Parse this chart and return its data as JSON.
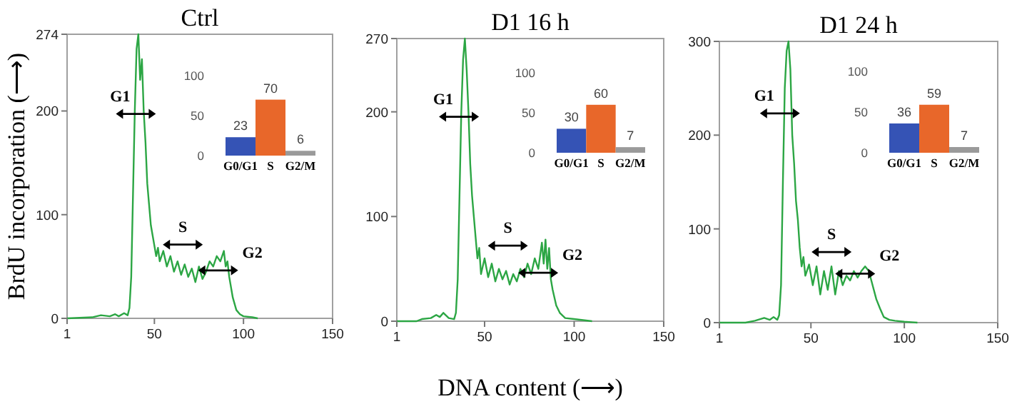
{
  "chart_data": [
    {
      "type": "line",
      "title": "Ctrl",
      "ylabel": "BrdU incorporation (⟶)",
      "xlim": [
        1,
        150
      ],
      "xticks": [
        1,
        50,
        100,
        150
      ],
      "ylim": [
        0,
        274
      ],
      "yticks": [
        0,
        100,
        200,
        274
      ],
      "grid": false,
      "annotations": [
        "G1",
        "S",
        "G2"
      ],
      "series": [
        {
          "color": "#2ca644",
          "x": [
            1,
            15,
            20,
            25,
            28,
            30,
            33,
            35,
            36,
            37,
            38,
            39,
            40,
            41,
            42,
            43,
            44,
            45,
            46,
            47,
            48,
            49,
            50,
            51,
            52,
            53,
            55,
            57,
            59,
            61,
            63,
            65,
            67,
            69,
            71,
            73,
            75,
            77,
            79,
            81,
            83,
            85,
            87,
            89,
            90,
            91,
            92,
            94,
            96,
            98,
            100,
            105,
            108
          ],
          "values": [
            0,
            1,
            3,
            2,
            4,
            2,
            5,
            3,
            10,
            40,
            120,
            200,
            260,
            274,
            230,
            250,
            200,
            170,
            130,
            110,
            90,
            80,
            70,
            60,
            68,
            55,
            65,
            50,
            60,
            45,
            55,
            42,
            52,
            40,
            48,
            35,
            50,
            38,
            45,
            55,
            50,
            60,
            55,
            65,
            50,
            55,
            40,
            20,
            8,
            4,
            2,
            1,
            0
          ]
        }
      ]
    },
    {
      "type": "bar",
      "categories": [
        "G0/G1",
        "S",
        "G2/M"
      ],
      "values": [
        23,
        70,
        6
      ],
      "colors": [
        "#3553b5",
        "#e8672a",
        "#9a9a9a"
      ],
      "ylim": [
        0,
        100
      ],
      "yticks": [
        0,
        50,
        100
      ],
      "data_labels": true
    },
    {
      "type": "line",
      "title": "D1 16 h",
      "xlabel": "DNA content (⟶)",
      "xlim": [
        1,
        150
      ],
      "xticks": [
        1,
        50,
        100,
        150
      ],
      "ylim": [
        0,
        270
      ],
      "yticks": [
        0,
        100,
        200,
        270
      ],
      "grid": false,
      "annotations": [
        "G1",
        "S",
        "G2"
      ],
      "series": [
        {
          "color": "#2ca644",
          "x": [
            1,
            12,
            15,
            20,
            23,
            25,
            27,
            30,
            33,
            34,
            35,
            36,
            37,
            38,
            39,
            40,
            41,
            42,
            43,
            44,
            45,
            46,
            47,
            48,
            50,
            52,
            54,
            56,
            58,
            60,
            62,
            64,
            66,
            68,
            70,
            72,
            74,
            76,
            78,
            80,
            82,
            83,
            84,
            85,
            86,
            87,
            88,
            90,
            92,
            95,
            100,
            105,
            110
          ],
          "values": [
            0,
            0,
            2,
            3,
            6,
            4,
            8,
            3,
            2,
            8,
            40,
            120,
            200,
            250,
            270,
            240,
            200,
            150,
            120,
            100,
            80,
            60,
            70,
            45,
            60,
            42,
            55,
            38,
            50,
            40,
            48,
            35,
            45,
            38,
            50,
            42,
            55,
            45,
            60,
            50,
            75,
            55,
            78,
            50,
            70,
            40,
            30,
            15,
            8,
            3,
            2,
            1,
            0
          ]
        }
      ]
    },
    {
      "type": "bar",
      "categories": [
        "G0/G1",
        "S",
        "G2/M"
      ],
      "values": [
        30,
        60,
        7
      ],
      "colors": [
        "#3553b5",
        "#e8672a",
        "#9a9a9a"
      ],
      "ylim": [
        0,
        100
      ],
      "yticks": [
        0,
        50,
        100
      ],
      "data_labels": true
    },
    {
      "type": "line",
      "title": "D1 24 h",
      "xlim": [
        1,
        150
      ],
      "xticks": [
        1,
        50,
        100,
        150
      ],
      "ylim": [
        0,
        300
      ],
      "yticks": [
        0,
        100,
        200,
        300
      ],
      "grid": false,
      "annotations": [
        "G1",
        "S",
        "G2"
      ],
      "series": [
        {
          "color": "#2ca644",
          "x": [
            1,
            15,
            20,
            25,
            28,
            30,
            32,
            33,
            34,
            35,
            36,
            37,
            38,
            39,
            40,
            41,
            42,
            43,
            44,
            45,
            46,
            47,
            49,
            51,
            53,
            55,
            57,
            59,
            61,
            63,
            65,
            67,
            69,
            71,
            73,
            75,
            77,
            79,
            81,
            83,
            85,
            87,
            89,
            92,
            95,
            100,
            107
          ],
          "values": [
            0,
            0,
            2,
            5,
            3,
            6,
            3,
            8,
            40,
            150,
            250,
            290,
            300,
            270,
            200,
            170,
            130,
            110,
            80,
            60,
            70,
            50,
            62,
            40,
            60,
            30,
            55,
            35,
            60,
            30,
            55,
            40,
            50,
            45,
            55,
            48,
            55,
            60,
            55,
            40,
            25,
            15,
            6,
            3,
            2,
            1,
            0
          ]
        }
      ]
    },
    {
      "type": "bar",
      "categories": [
        "G0/G1",
        "S",
        "G2/M"
      ],
      "values": [
        36,
        59,
        7
      ],
      "colors": [
        "#3553b5",
        "#e8672a",
        "#9a9a9a"
      ],
      "ylim": [
        0,
        100
      ],
      "yticks": [
        0,
        50,
        100
      ],
      "data_labels": true
    }
  ]
}
